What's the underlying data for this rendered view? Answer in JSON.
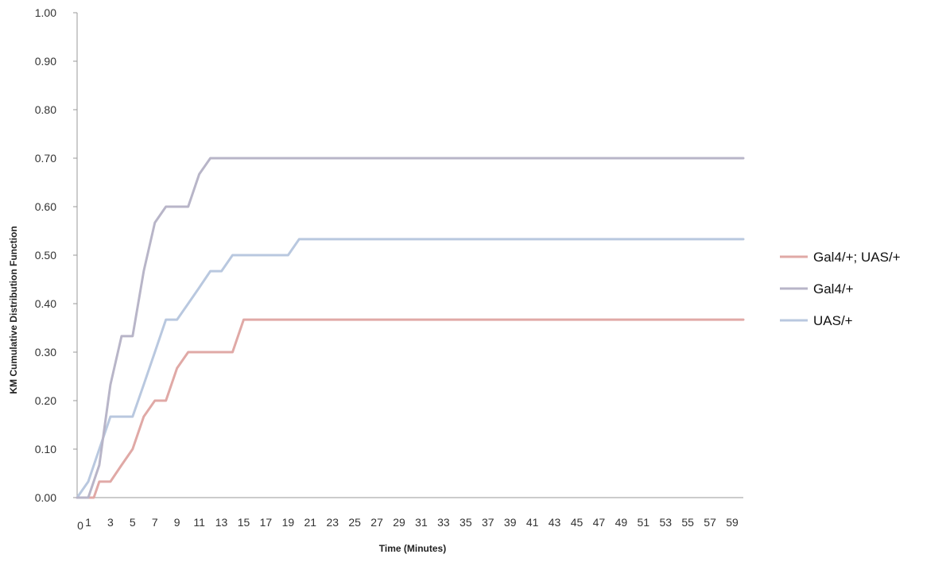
{
  "chart_data": {
    "type": "line",
    "title": "",
    "xlabel": "Time (Minutes)",
    "ylabel": "KM Cumulative  Distribution  Function",
    "xlim": [
      0,
      60
    ],
    "ylim": [
      0,
      1
    ],
    "x_tick_labels": [
      "0",
      "1",
      "3",
      "5",
      "7",
      "9",
      "11",
      "13",
      "15",
      "17",
      "19",
      "21",
      "23",
      "25",
      "27",
      "29",
      "31",
      "33",
      "35",
      "37",
      "39",
      "41",
      "43",
      "45",
      "47",
      "49",
      "51",
      "53",
      "55",
      "57",
      "59"
    ],
    "y_tick_labels": [
      "0.00",
      "0.10",
      "0.20",
      "0.30",
      "0.40",
      "0.50",
      "0.60",
      "0.70",
      "0.80",
      "0.90",
      "1.00"
    ],
    "grid": false,
    "legend_position": "right",
    "series": [
      {
        "name": "Gal4/+; UAS/+",
        "color": "#e0a9a6",
        "points": [
          [
            0,
            0
          ],
          [
            1,
            0
          ],
          [
            1.5,
            0
          ],
          [
            2,
            0.033
          ],
          [
            3,
            0.033
          ],
          [
            4,
            0.067
          ],
          [
            5,
            0.1
          ],
          [
            6,
            0.167
          ],
          [
            7,
            0.2
          ],
          [
            8,
            0.2
          ],
          [
            9,
            0.267
          ],
          [
            10,
            0.3
          ],
          [
            11,
            0.3
          ],
          [
            12,
            0.3
          ],
          [
            13,
            0.3
          ],
          [
            14,
            0.3
          ],
          [
            15,
            0.367
          ],
          [
            16,
            0.367
          ],
          [
            60,
            0.367
          ]
        ]
      },
      {
        "name": "Gal4/+",
        "color": "#b8b5c8",
        "points": [
          [
            0,
            0
          ],
          [
            1,
            0
          ],
          [
            2,
            0.067
          ],
          [
            3,
            0.233
          ],
          [
            4,
            0.333
          ],
          [
            5,
            0.333
          ],
          [
            6,
            0.467
          ],
          [
            7,
            0.567
          ],
          [
            8,
            0.6
          ],
          [
            9,
            0.6
          ],
          [
            10,
            0.6
          ],
          [
            11,
            0.667
          ],
          [
            12,
            0.7
          ],
          [
            13,
            0.7
          ],
          [
            60,
            0.7
          ]
        ]
      },
      {
        "name": "UAS/+",
        "color": "#b9c8df",
        "points": [
          [
            0,
            0
          ],
          [
            1,
            0.033
          ],
          [
            2,
            0.1
          ],
          [
            3,
            0.167
          ],
          [
            4,
            0.167
          ],
          [
            5,
            0.167
          ],
          [
            6,
            0.233
          ],
          [
            7,
            0.3
          ],
          [
            8,
            0.367
          ],
          [
            9,
            0.367
          ],
          [
            10,
            0.4
          ],
          [
            11,
            0.433
          ],
          [
            12,
            0.467
          ],
          [
            13,
            0.467
          ],
          [
            14,
            0.5
          ],
          [
            15,
            0.5
          ],
          [
            16,
            0.5
          ],
          [
            17,
            0.5
          ],
          [
            18,
            0.5
          ],
          [
            19,
            0.5
          ],
          [
            20,
            0.533
          ],
          [
            21,
            0.533
          ],
          [
            60,
            0.533
          ]
        ]
      }
    ]
  }
}
